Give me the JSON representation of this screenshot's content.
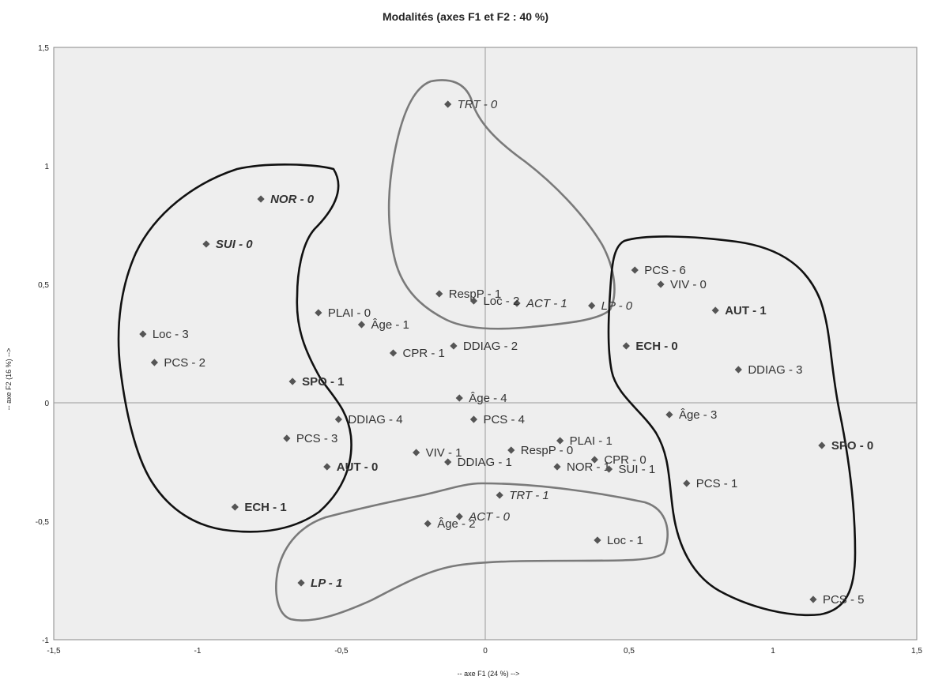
{
  "chart_data": {
    "type": "scatter",
    "title": "Modalités (axes F1 et F2 : 40 %)",
    "xlabel": "-- axe F1 (24 %) -->",
    "ylabel": "-- axe F2 (16 %) -->",
    "xlim": [
      -1.5,
      1.5
    ],
    "ylim": [
      -1,
      1.5
    ],
    "xticks": [
      "-1,5",
      "-1",
      "-0,5",
      "0",
      "0,5",
      "1",
      "1,5"
    ],
    "yticks": [
      "-1",
      "-0,5",
      "0",
      "0,5",
      "1",
      "1,5"
    ],
    "grid": false,
    "colors": {
      "plot_bg": "#eeeeee",
      "marker": "#555555",
      "contour_dark": "#111111",
      "contour_grey": "#7a7a7a",
      "axis_line": "#999999"
    },
    "points": [
      {
        "label": "TRT - 0",
        "x": -0.13,
        "y": 1.26,
        "style": "italic"
      },
      {
        "label": "NOR - 0",
        "x": -0.78,
        "y": 0.86,
        "style": "bolditalic"
      },
      {
        "label": "SUI - 0",
        "x": -0.97,
        "y": 0.67,
        "style": "bolditalic"
      },
      {
        "label": "PCS - 6",
        "x": 0.52,
        "y": 0.56,
        "style": "normal"
      },
      {
        "label": "VIV - 0",
        "x": 0.61,
        "y": 0.5,
        "style": "normal"
      },
      {
        "label": "RespP - 1",
        "x": -0.16,
        "y": 0.46,
        "style": "normal"
      },
      {
        "label": "ACT - 1",
        "x": 0.11,
        "y": 0.42,
        "style": "italic"
      },
      {
        "label": "Loc - 2",
        "x": -0.04,
        "y": 0.43,
        "style": "normal"
      },
      {
        "label": "LP - 0",
        "x": 0.37,
        "y": 0.41,
        "style": "italic"
      },
      {
        "label": "AUT - 1",
        "x": 0.8,
        "y": 0.39,
        "style": "bold"
      },
      {
        "label": "PLAI - 0",
        "x": -0.58,
        "y": 0.38,
        "style": "normal"
      },
      {
        "label": "Âge - 1",
        "x": -0.43,
        "y": 0.33,
        "style": "normal"
      },
      {
        "label": "Loc - 3",
        "x": -1.19,
        "y": 0.29,
        "style": "normal"
      },
      {
        "label": "DDIAG - 2",
        "x": -0.11,
        "y": 0.24,
        "style": "normal"
      },
      {
        "label": "ECH - 0",
        "x": 0.49,
        "y": 0.24,
        "style": "bold"
      },
      {
        "label": "CPR - 1",
        "x": -0.32,
        "y": 0.21,
        "style": "normal"
      },
      {
        "label": "PCS - 2",
        "x": -1.15,
        "y": 0.17,
        "style": "normal"
      },
      {
        "label": "DDIAG - 3",
        "x": 0.88,
        "y": 0.14,
        "style": "normal"
      },
      {
        "label": "SPO - 1",
        "x": -0.67,
        "y": 0.09,
        "style": "bold"
      },
      {
        "label": "Âge - 4",
        "x": -0.09,
        "y": 0.02,
        "style": "normal"
      },
      {
        "label": "Âge - 3",
        "x": 0.64,
        "y": -0.05,
        "style": "normal"
      },
      {
        "label": "DDIAG - 4",
        "x": -0.51,
        "y": -0.07,
        "style": "normal"
      },
      {
        "label": "PCS - 4",
        "x": -0.04,
        "y": -0.07,
        "style": "normal"
      },
      {
        "label": "PCS - 3",
        "x": -0.69,
        "y": -0.15,
        "style": "normal"
      },
      {
        "label": "PLAI - 1",
        "x": 0.26,
        "y": -0.16,
        "style": "normal"
      },
      {
        "label": "SPO - 0",
        "x": 1.17,
        "y": -0.18,
        "style": "bold"
      },
      {
        "label": "VIV - 1",
        "x": -0.24,
        "y": -0.21,
        "style": "normal"
      },
      {
        "label": "RespP - 0",
        "x": 0.09,
        "y": -0.2,
        "style": "normal"
      },
      {
        "label": "CPR - 0",
        "x": 0.38,
        "y": -0.24,
        "style": "normal"
      },
      {
        "label": "DDIAG - 1",
        "x": -0.13,
        "y": -0.25,
        "style": "normal"
      },
      {
        "label": "NOR - 1",
        "x": 0.25,
        "y": -0.27,
        "style": "normal"
      },
      {
        "label": "AUT - 0",
        "x": -0.55,
        "y": -0.27,
        "style": "bold"
      },
      {
        "label": "SUI - 1",
        "x": 0.43,
        "y": -0.28,
        "style": "normal"
      },
      {
        "label": "PCS - 1",
        "x": 0.7,
        "y": -0.34,
        "style": "normal"
      },
      {
        "label": "TRT - 1",
        "x": 0.05,
        "y": -0.39,
        "style": "italic"
      },
      {
        "label": "ECH - 1",
        "x": -0.87,
        "y": -0.44,
        "style": "bold"
      },
      {
        "label": "ACT - 0",
        "x": -0.09,
        "y": -0.48,
        "style": "italic"
      },
      {
        "label": "Âge - 2",
        "x": -0.2,
        "y": -0.51,
        "style": "normal"
      },
      {
        "label": "Loc - 1",
        "x": 0.39,
        "y": -0.58,
        "style": "normal"
      },
      {
        "label": "LP - 1",
        "x": -0.64,
        "y": -0.76,
        "style": "bolditalic"
      },
      {
        "label": "PCS - 5",
        "x": 1.14,
        "y": -0.83,
        "style": "normal"
      }
    ]
  }
}
